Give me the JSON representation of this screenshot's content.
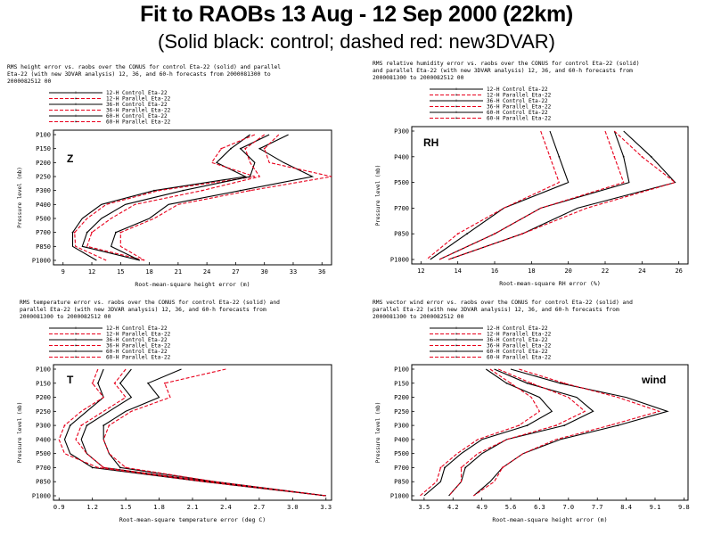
{
  "page": {
    "title": "Fit to RAOBs 13 Aug - 12 Sep 2000 (22km)",
    "subtitle": "(Solid black: control; dashed red: new3DVAR)"
  },
  "colors": {
    "control": "#000000",
    "parallel": "#e8001c"
  },
  "chart_data": [
    {
      "type": "line",
      "panel_label": "Z",
      "title_lines": [
        "RMS height error vs. raobs over the CONUS for control Eta-22 (solid) and parallel",
        "Eta-22 (with new 3DVAR analysis) 12, 36, and 60-h forecasts from 2000081300 to",
        "2000082512 00"
      ],
      "xlabel": "Root-mean-square height error (m)",
      "ylabel": "Pressure level (mb)",
      "xticks": [
        "9",
        "12",
        "15",
        "18",
        "21",
        "24",
        "27",
        "30",
        "33",
        "36"
      ],
      "xlim": [
        8,
        37
      ],
      "levels": [
        "P100",
        "P150",
        "P200",
        "P250",
        "P300",
        "P400",
        "P500",
        "P700",
        "P850",
        "P1000"
      ],
      "legend_placement": "top",
      "series": [
        {
          "name": "12-H Control Eta-22",
          "style": "control",
          "values": [
            28.5,
            26.5,
            25,
            28,
            18.5,
            13,
            11,
            10,
            10,
            12.5
          ]
        },
        {
          "name": "12-H Parallel Eta-22",
          "style": "parallel",
          "values": [
            29,
            25.5,
            24.5,
            29,
            19,
            13.5,
            11.5,
            10.2,
            10.3,
            13.5
          ]
        },
        {
          "name": "36-H Control Eta-22",
          "style": "control",
          "values": [
            30.5,
            27.5,
            29,
            28.5,
            21.5,
            15.5,
            13,
            11.5,
            11,
            17
          ]
        },
        {
          "name": "36-H Parallel Eta-22",
          "style": "parallel",
          "values": [
            30,
            28,
            28.5,
            29.5,
            23.5,
            16.5,
            14,
            12,
            11.5,
            17.5
          ]
        },
        {
          "name": "60-H Control Eta-22",
          "style": "control",
          "values": [
            32.5,
            29.5,
            32,
            35,
            27.5,
            20,
            18,
            14.5,
            14,
            17
          ]
        },
        {
          "name": "60-H Parallel Eta-22",
          "style": "parallel",
          "values": [
            31.5,
            30,
            30.5,
            37,
            28.5,
            21,
            18.5,
            15,
            15,
            17.5
          ]
        }
      ]
    },
    {
      "type": "line",
      "panel_label": "RH",
      "title_lines": [
        "RMS relative humidity error vs. raobs over the CONUS for control Eta-22 (solid)",
        "and parallel Eta-22 (with new 3DVAR analysis) 12, 36, and 60-h forecasts from",
        "2000081300 to 2000082512 00"
      ],
      "xlabel": "Root-mean-square RH error (%)",
      "ylabel": "Pressure level (mb)",
      "xticks": [
        "12",
        "14",
        "16",
        "18",
        "20",
        "22",
        "24",
        "26"
      ],
      "xlim": [
        11.5,
        26.5
      ],
      "levels": [
        "P300",
        "P400",
        "P500",
        "P700",
        "P850",
        "P1000"
      ],
      "legend_placement": "top",
      "series": [
        {
          "name": "12-H Control Eta-22",
          "style": "control",
          "values": [
            19,
            19.5,
            20,
            16.5,
            14.5,
            12.5
          ]
        },
        {
          "name": "12-H Parallel Eta-22",
          "style": "parallel",
          "values": [
            18.5,
            19,
            19.5,
            16.5,
            14,
            12.3
          ]
        },
        {
          "name": "36-H Control Eta-22",
          "style": "control",
          "values": [
            22.5,
            23,
            23.3,
            18.5,
            16,
            13
          ]
        },
        {
          "name": "36-H Parallel Eta-22",
          "style": "parallel",
          "values": [
            22,
            22.5,
            23,
            18.5,
            16,
            13
          ]
        },
        {
          "name": "60-H Control Eta-22",
          "style": "control",
          "values": [
            23,
            24.5,
            25.8,
            20.5,
            17.5,
            13.5
          ]
        },
        {
          "name": "60-H Parallel Eta-22",
          "style": "parallel",
          "values": [
            22.5,
            24,
            25.8,
            21,
            17.5,
            13.5
          ]
        }
      ]
    },
    {
      "type": "line",
      "panel_label": "T",
      "title_lines": [
        "RMS temperature error vs. raobs over the CONUS for control Eta-22 (solid) and",
        "parallel Eta-22 (with new 3DVAR analysis) 12, 36, and 60-h forecasts from",
        "2000081300 to 2000082512 00"
      ],
      "xlabel": "Root-mean-square temperature error (deg C)",
      "ylabel": "Pressure level (mb)",
      "xticks": [
        "0.9",
        "1.2",
        "1.5",
        "1.8",
        "2.1",
        "2.4",
        "2.7",
        "3.0",
        "3.3"
      ],
      "xlim": [
        0.85,
        3.35
      ],
      "levels": [
        "P100",
        "P150",
        "P200",
        "P250",
        "P300",
        "P400",
        "P500",
        "P700",
        "P850",
        "P1000"
      ],
      "legend_placement": "top",
      "series": [
        {
          "name": "12-H Control Eta-22",
          "style": "control",
          "values": [
            1.3,
            1.25,
            1.3,
            1.15,
            1.0,
            0.95,
            1.0,
            1.2,
            2.2,
            3.3
          ]
        },
        {
          "name": "12-H Parallel Eta-22",
          "style": "parallel",
          "values": [
            1.25,
            1.2,
            1.3,
            1.1,
            0.95,
            0.9,
            0.95,
            1.25,
            2.2,
            3.3
          ]
        },
        {
          "name": "36-H Control Eta-22",
          "style": "control",
          "values": [
            1.55,
            1.45,
            1.55,
            1.35,
            1.15,
            1.1,
            1.15,
            1.3,
            2.25,
            3.3
          ]
        },
        {
          "name": "36-H Parallel Eta-22",
          "style": "parallel",
          "values": [
            1.5,
            1.4,
            1.5,
            1.3,
            1.1,
            1.05,
            1.15,
            1.3,
            2.25,
            3.3
          ]
        },
        {
          "name": "60-H Control Eta-22",
          "style": "control",
          "values": [
            2.0,
            1.7,
            1.8,
            1.5,
            1.3,
            1.3,
            1.35,
            1.45,
            2.3,
            3.3
          ]
        },
        {
          "name": "60-H Parallel Eta-22",
          "style": "parallel",
          "values": [
            2.4,
            1.85,
            1.9,
            1.55,
            1.35,
            1.3,
            1.35,
            1.5,
            2.3,
            3.3
          ]
        }
      ]
    },
    {
      "type": "line",
      "panel_label": "wind",
      "title_lines": [
        "RMS vector wind error vs. raobs over the CONUS for control Eta-22 (solid) and",
        "parallel Eta-22 (with new 3DVAR analysis) 12, 36, and 60-h forecasts from",
        "2000081300 to 2000082512 00"
      ],
      "xlabel": "Root-mean-square height error (m)",
      "ylabel": "Pressure level (mb)",
      "xticks": [
        "3.5",
        "4.2",
        "4.9",
        "5.6",
        "6.3",
        "7.0",
        "7.7",
        "8.4",
        "9.1",
        "9.8"
      ],
      "xlim": [
        3.2,
        9.9
      ],
      "levels": [
        "P100",
        "P150",
        "P200",
        "P250",
        "P300",
        "P400",
        "P500",
        "P700",
        "P850",
        "P1000"
      ],
      "legend_placement": "top",
      "series": [
        {
          "name": "12-H Control Eta-22",
          "style": "control",
          "values": [
            5.0,
            5.5,
            6.3,
            6.6,
            6.0,
            4.9,
            4.4,
            4.0,
            3.9,
            3.5
          ]
        },
        {
          "name": "12-H Parallel Eta-22",
          "style": "parallel",
          "values": [
            5.1,
            5.6,
            6.1,
            6.3,
            5.8,
            4.8,
            4.3,
            3.9,
            3.8,
            3.4
          ]
        },
        {
          "name": "36-H Control Eta-22",
          "style": "control",
          "values": [
            5.2,
            6.0,
            7.2,
            7.6,
            6.9,
            5.5,
            4.9,
            4.5,
            4.4,
            4.1
          ]
        },
        {
          "name": "36-H Parallel Eta-22",
          "style": "parallel",
          "values": [
            5.3,
            6.1,
            7.0,
            7.4,
            6.7,
            5.5,
            4.8,
            4.4,
            4.4,
            4.1
          ]
        },
        {
          "name": "60-H Control Eta-22",
          "style": "control",
          "values": [
            5.6,
            6.8,
            8.4,
            9.4,
            8.2,
            6.8,
            5.9,
            5.4,
            5.1,
            4.7
          ]
        },
        {
          "name": "60-H Parallel Eta-22",
          "style": "parallel",
          "values": [
            5.8,
            6.9,
            8.2,
            9.2,
            8.0,
            6.7,
            5.9,
            5.4,
            5.2,
            4.7
          ]
        }
      ]
    }
  ]
}
